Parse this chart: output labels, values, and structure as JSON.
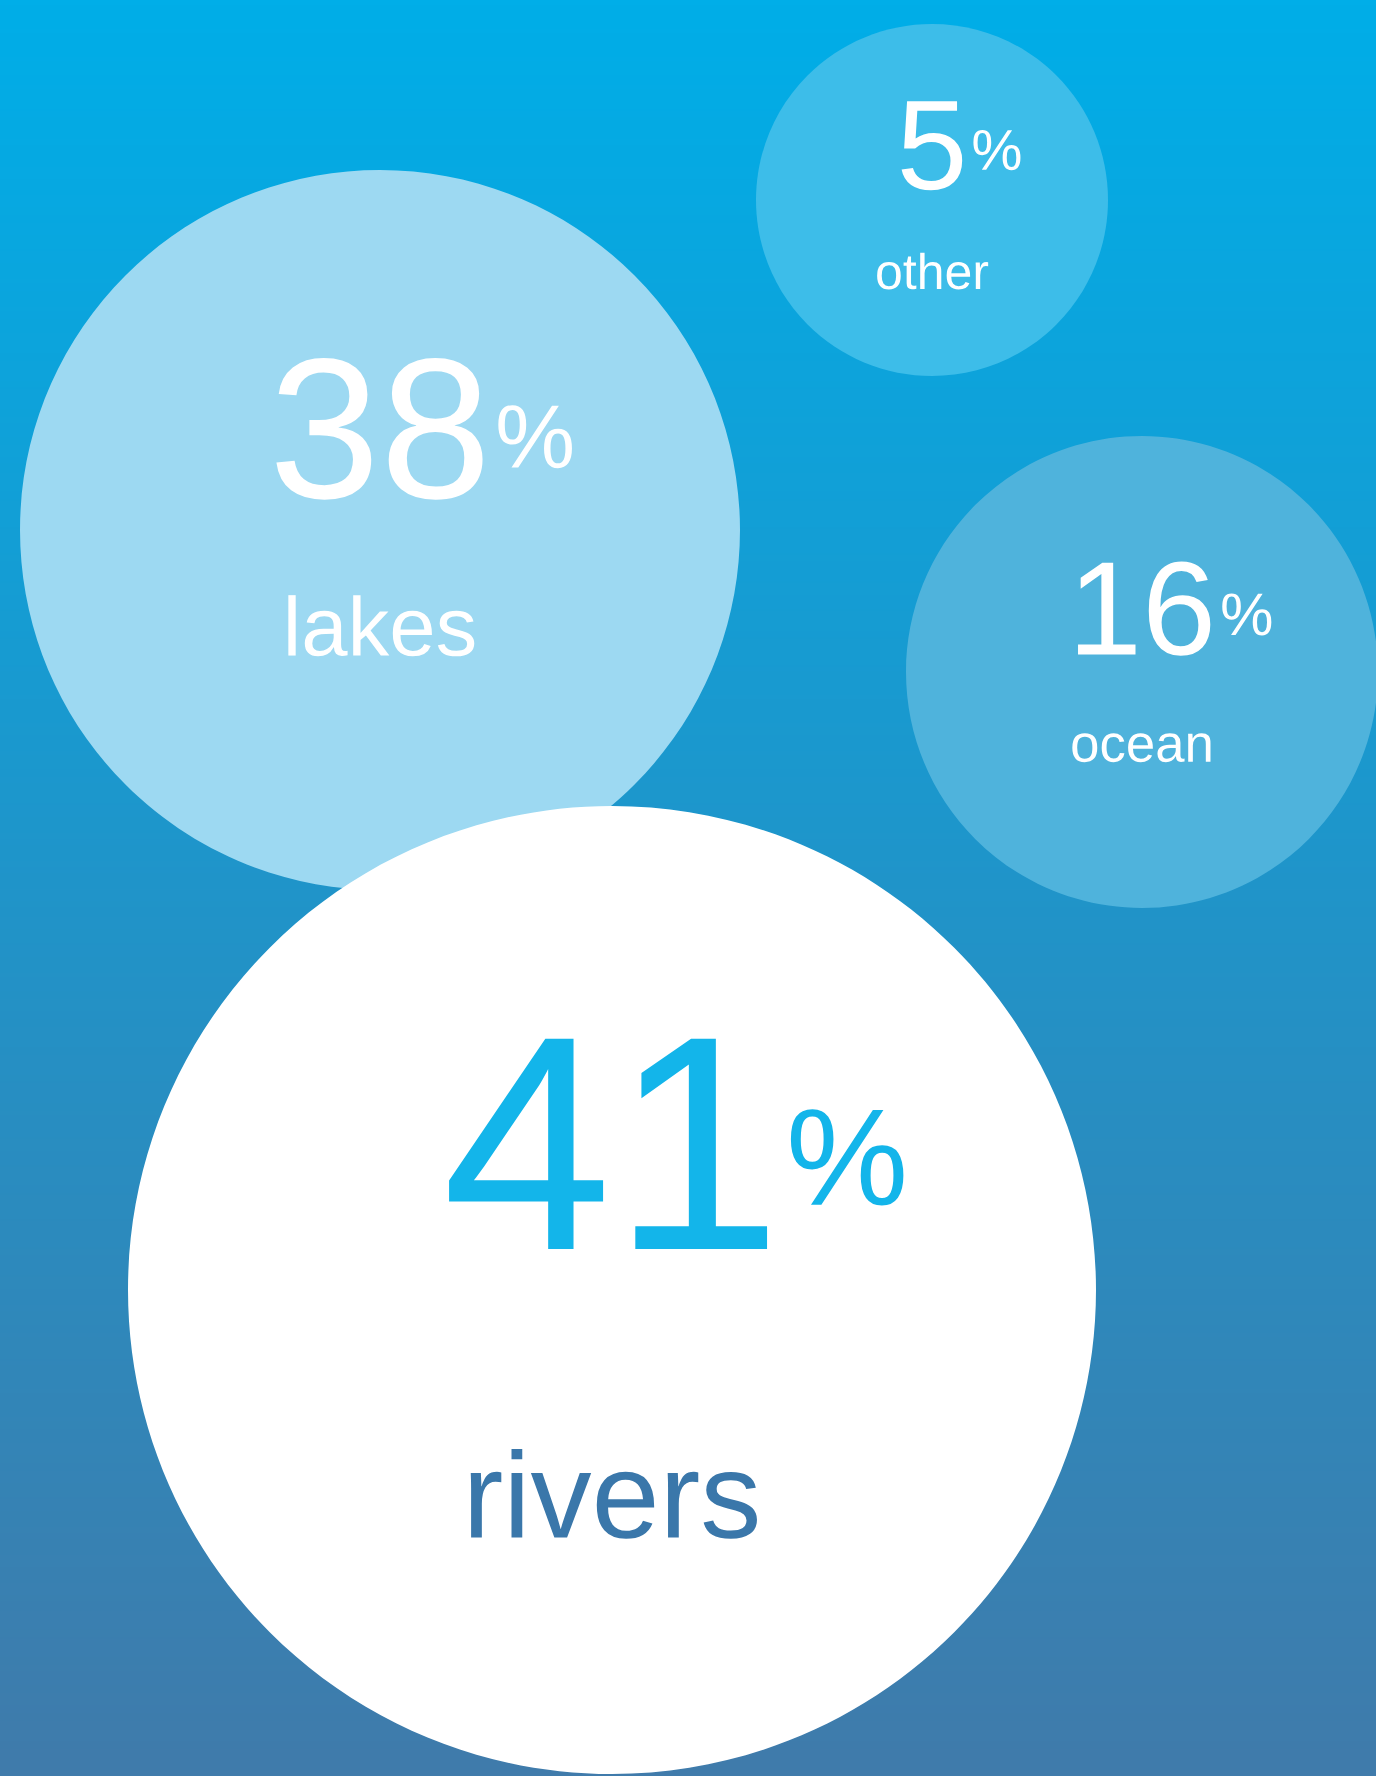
{
  "chart_data": {
    "type": "other",
    "categories": [
      "other",
      "lakes",
      "ocean",
      "rivers"
    ],
    "values": [
      5,
      38,
      16,
      41
    ],
    "colors": [
      "#3dbde9",
      "#9dd9f2",
      "#4fb3dc",
      "#ffffff"
    ],
    "value_labels": [
      "5%",
      "38%",
      "16%",
      "41%"
    ]
  }
}
